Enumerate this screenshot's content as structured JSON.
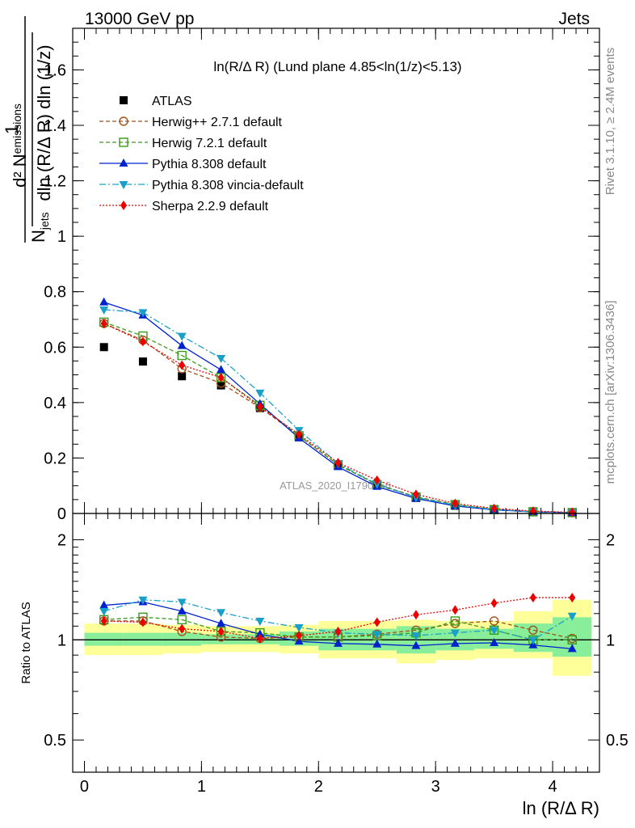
{
  "header": {
    "left": "13000 GeV pp",
    "right": "Jets"
  },
  "side_labels": {
    "rivet": "Rivet 3.1.10, ≥ 2.4M events",
    "mcplots": "mcplots.cern.ch [arXiv:1306.3436]"
  },
  "watermark": "ATLAS_2020_I1790256",
  "colors": {
    "atlas": "#000000",
    "herwigpp": "#a0521b",
    "herwig7": "#3a9b1a",
    "pythia": "#0022cc",
    "vincia": "#1aa0c8",
    "sherpa": "#ee0000",
    "band_yellow": "#ffff99",
    "band_green": "#88ee99"
  },
  "chart_data": [
    {
      "type": "line",
      "panel": "main",
      "title": "ln(R/Δ R) (Lund plane 4.85<ln(1/z)<5.13)",
      "ylabel": {
        "numerator": "d² N",
        "numerator_sub": "emissions",
        "denominator": "N",
        "denominator_sub": "jets",
        "denominator_rest": "dln (R/Δ R) dln (1/z)"
      },
      "xlim": [
        -0.1,
        4.4
      ],
      "ylim": [
        0,
        1.75
      ],
      "yticks": [
        0,
        0.2,
        0.4,
        0.6,
        0.8,
        1,
        1.2,
        1.4,
        1.6
      ],
      "ytick_labels": [
        "0",
        "0.2",
        "0.4",
        "0.6",
        "0.8",
        "1",
        "1.2",
        "1.4",
        "1.6"
      ],
      "legend_position": "top-left",
      "x": [
        0.167,
        0.5,
        0.833,
        1.167,
        1.5,
        1.833,
        2.167,
        2.5,
        2.833,
        3.167,
        3.5,
        3.833,
        4.167
      ],
      "series": [
        {
          "name": "ATLAS",
          "key": "atlas",
          "style": "data",
          "values": [
            0.6,
            0.548,
            0.495,
            0.462,
            0.38,
            0.275,
            0.172,
            0.102,
            0.056,
            0.028,
            0.013,
            0.006,
            0.003
          ]
        },
        {
          "name": "Herwig++ 2.7.1 default",
          "key": "herwigpp",
          "style": "circle",
          "dash": "5,3",
          "values": [
            0.685,
            0.625,
            0.522,
            0.47,
            0.382,
            0.28,
            0.175,
            0.106,
            0.06,
            0.032,
            0.015,
            0.0065,
            0.003
          ]
        },
        {
          "name": "Herwig 7.2.1 default",
          "key": "herwig7",
          "style": "square",
          "dash": "5,3",
          "values": [
            0.69,
            0.64,
            0.57,
            0.49,
            0.39,
            0.28,
            0.176,
            0.104,
            0.059,
            0.032,
            0.014,
            0.006,
            0.003
          ]
        },
        {
          "name": "Pythia 8.308 default",
          "key": "pythia",
          "style": "triangle-up",
          "dash": "",
          "values": [
            0.762,
            0.715,
            0.605,
            0.518,
            0.395,
            0.272,
            0.168,
            0.097,
            0.054,
            0.027,
            0.013,
            0.006,
            0.003
          ]
        },
        {
          "name": "Pythia 8.308 vincia-default",
          "key": "vincia",
          "style": "triangle-down",
          "dash": "8,3,2,3",
          "values": [
            0.735,
            0.725,
            0.64,
            0.56,
            0.435,
            0.3,
            0.18,
            0.106,
            0.058,
            0.03,
            0.014,
            0.006,
            0.0035
          ]
        },
        {
          "name": "Sherpa 2.2.9 default",
          "key": "sherpa",
          "style": "diamond",
          "dash": "2,2",
          "values": [
            0.685,
            0.62,
            0.535,
            0.49,
            0.385,
            0.285,
            0.183,
            0.12,
            0.069,
            0.036,
            0.018,
            0.0085,
            0.0042
          ]
        }
      ]
    },
    {
      "type": "line",
      "panel": "ratio",
      "ylabel": "Ratio to ATLAS",
      "xlabel": "ln (R/Δ R)",
      "ylog": true,
      "ylim": [
        0.4,
        2.4
      ],
      "yticks": [
        0.5,
        1,
        2
      ],
      "ytick_labels": [
        "0.5",
        "1",
        "2"
      ],
      "xticks": [
        0,
        1,
        2,
        3,
        4
      ],
      "xtick_labels": [
        "0",
        "1",
        "2",
        "3",
        "4"
      ],
      "x": [
        0.167,
        0.5,
        0.833,
        1.167,
        1.5,
        1.833,
        2.167,
        2.5,
        2.833,
        3.167,
        3.5,
        3.833,
        4.167
      ],
      "bins": [
        [
          0,
          0.333
        ],
        [
          0.333,
          0.667
        ],
        [
          0.667,
          1.0
        ],
        [
          1.0,
          1.333
        ],
        [
          1.333,
          1.667
        ],
        [
          1.667,
          2.0
        ],
        [
          2.0,
          2.333
        ],
        [
          2.333,
          2.667
        ],
        [
          2.667,
          3.0
        ],
        [
          3.0,
          3.333
        ],
        [
          3.333,
          3.667
        ],
        [
          3.667,
          4.0
        ],
        [
          4.0,
          4.333
        ]
      ],
      "band_yellow": [
        [
          0.9,
          1.12
        ],
        [
          0.9,
          1.12
        ],
        [
          0.91,
          1.11
        ],
        [
          0.92,
          1.1
        ],
        [
          0.92,
          1.1
        ],
        [
          0.91,
          1.11
        ],
        [
          0.88,
          1.14
        ],
        [
          0.88,
          1.14
        ],
        [
          0.85,
          1.15
        ],
        [
          0.87,
          1.14
        ],
        [
          0.88,
          1.14
        ],
        [
          0.88,
          1.22
        ],
        [
          0.78,
          1.32
        ]
      ],
      "band_green": [
        [
          0.96,
          1.05
        ],
        [
          0.96,
          1.05
        ],
        [
          0.96,
          1.05
        ],
        [
          0.97,
          1.04
        ],
        [
          0.97,
          1.04
        ],
        [
          0.96,
          1.06
        ],
        [
          0.93,
          1.08
        ],
        [
          0.93,
          1.08
        ],
        [
          0.91,
          1.1
        ],
        [
          0.93,
          1.08
        ],
        [
          0.94,
          1.08
        ],
        [
          0.92,
          1.12
        ],
        [
          0.89,
          1.17
        ]
      ],
      "series": [
        {
          "name": "Herwig++ 2.7.1 default",
          "key": "herwigpp",
          "style": "circle",
          "dash": "5,3",
          "values": [
            1.14,
            1.14,
            1.06,
            1.02,
            1.01,
            1.02,
            1.02,
            1.04,
            1.07,
            1.12,
            1.14,
            1.07,
            1.01
          ]
        },
        {
          "name": "Herwig 7.2.1 default",
          "key": "herwig7",
          "style": "square",
          "dash": "5,3",
          "values": [
            1.15,
            1.17,
            1.15,
            1.06,
            1.05,
            1.02,
            1.02,
            1.03,
            1.05,
            1.14,
            1.07,
            1.0,
            1.0
          ]
        },
        {
          "name": "Pythia 8.308 default",
          "key": "pythia",
          "style": "triangle-up",
          "dash": "",
          "values": [
            1.27,
            1.3,
            1.22,
            1.12,
            1.04,
            0.99,
            0.975,
            0.97,
            0.96,
            0.975,
            0.98,
            0.965,
            0.94
          ]
        },
        {
          "name": "Pythia 8.308 vincia-default",
          "key": "vincia",
          "style": "triangle-down",
          "dash": "8,3,2,3",
          "values": [
            1.22,
            1.32,
            1.3,
            1.21,
            1.14,
            1.09,
            1.05,
            1.04,
            1.03,
            1.05,
            1.07,
            1.0,
            1.18
          ]
        },
        {
          "name": "Sherpa 2.2.9 default",
          "key": "sherpa",
          "style": "diamond",
          "dash": "2,2",
          "values": [
            1.14,
            1.13,
            1.08,
            1.06,
            1.01,
            1.03,
            1.06,
            1.13,
            1.19,
            1.23,
            1.29,
            1.34,
            1.34
          ]
        }
      ]
    }
  ]
}
